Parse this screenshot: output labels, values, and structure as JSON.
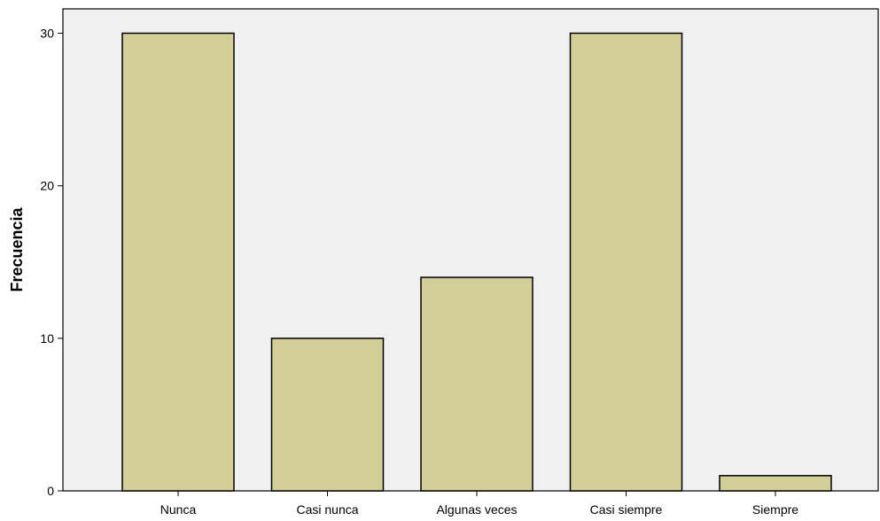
{
  "chart_data": {
    "type": "bar",
    "title": "",
    "xlabel": "",
    "ylabel": "Frecuencia",
    "categories": [
      "Nunca",
      "Casi nunca",
      "Algunas veces",
      "Casi  siempre",
      "Siempre"
    ],
    "values": [
      30,
      10,
      14,
      30,
      1
    ],
    "ylim": [
      0,
      31.6
    ],
    "yticks": [
      0,
      10,
      20,
      30
    ],
    "grid": false,
    "legend": "none",
    "colors": {
      "bar_fill": "#d3cd98",
      "bar_stroke": "#000000",
      "plot_background": "#f0f0f0",
      "axis": "#000000"
    }
  }
}
